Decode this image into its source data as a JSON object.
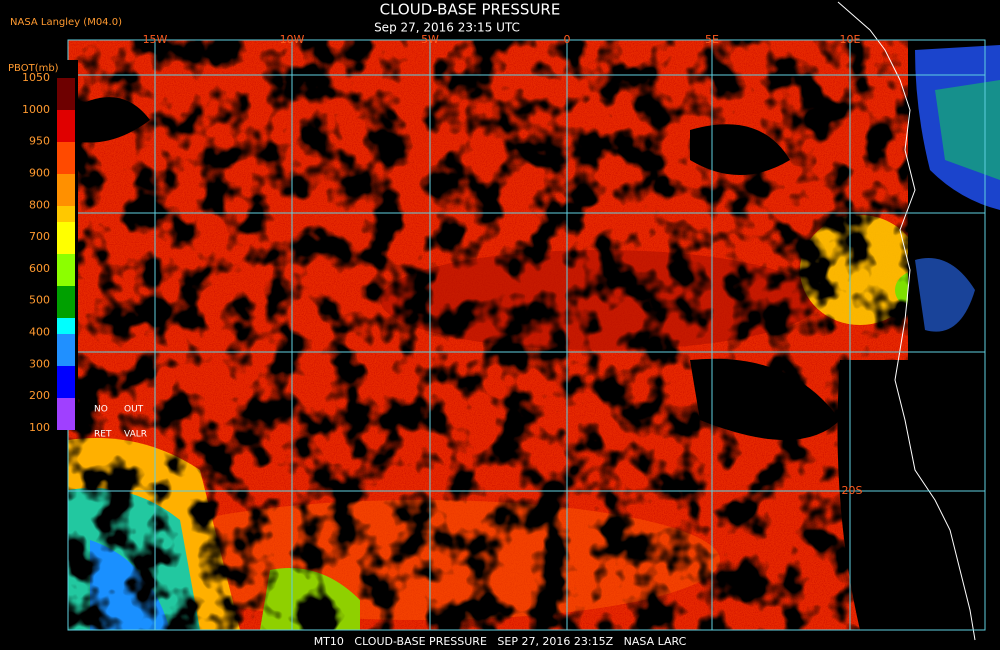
{
  "header": {
    "source": "NASA Langley (M04.0)",
    "title": "CLOUD-BASE PRESSURE",
    "time": "Sep 27, 2016 23:15 UTC"
  },
  "legend": {
    "title": "PBOT(mb)",
    "labels": [
      "1050",
      "1000",
      "950",
      "900",
      "800",
      "700",
      "600",
      "500",
      "400",
      "300",
      "200",
      "100"
    ],
    "no_data": [
      "NO",
      "RET"
    ],
    "out": [
      "OUT",
      "VALR"
    ]
  },
  "map": {
    "longitudes": [
      "15W",
      "10W",
      "5W",
      "0",
      "5E",
      "10E"
    ],
    "latitudes": [
      "20S"
    ]
  },
  "footer": "MT10   CLOUD-BASE PRESSURE   SEP 27, 2016 23:15Z   NASA LARC"
}
